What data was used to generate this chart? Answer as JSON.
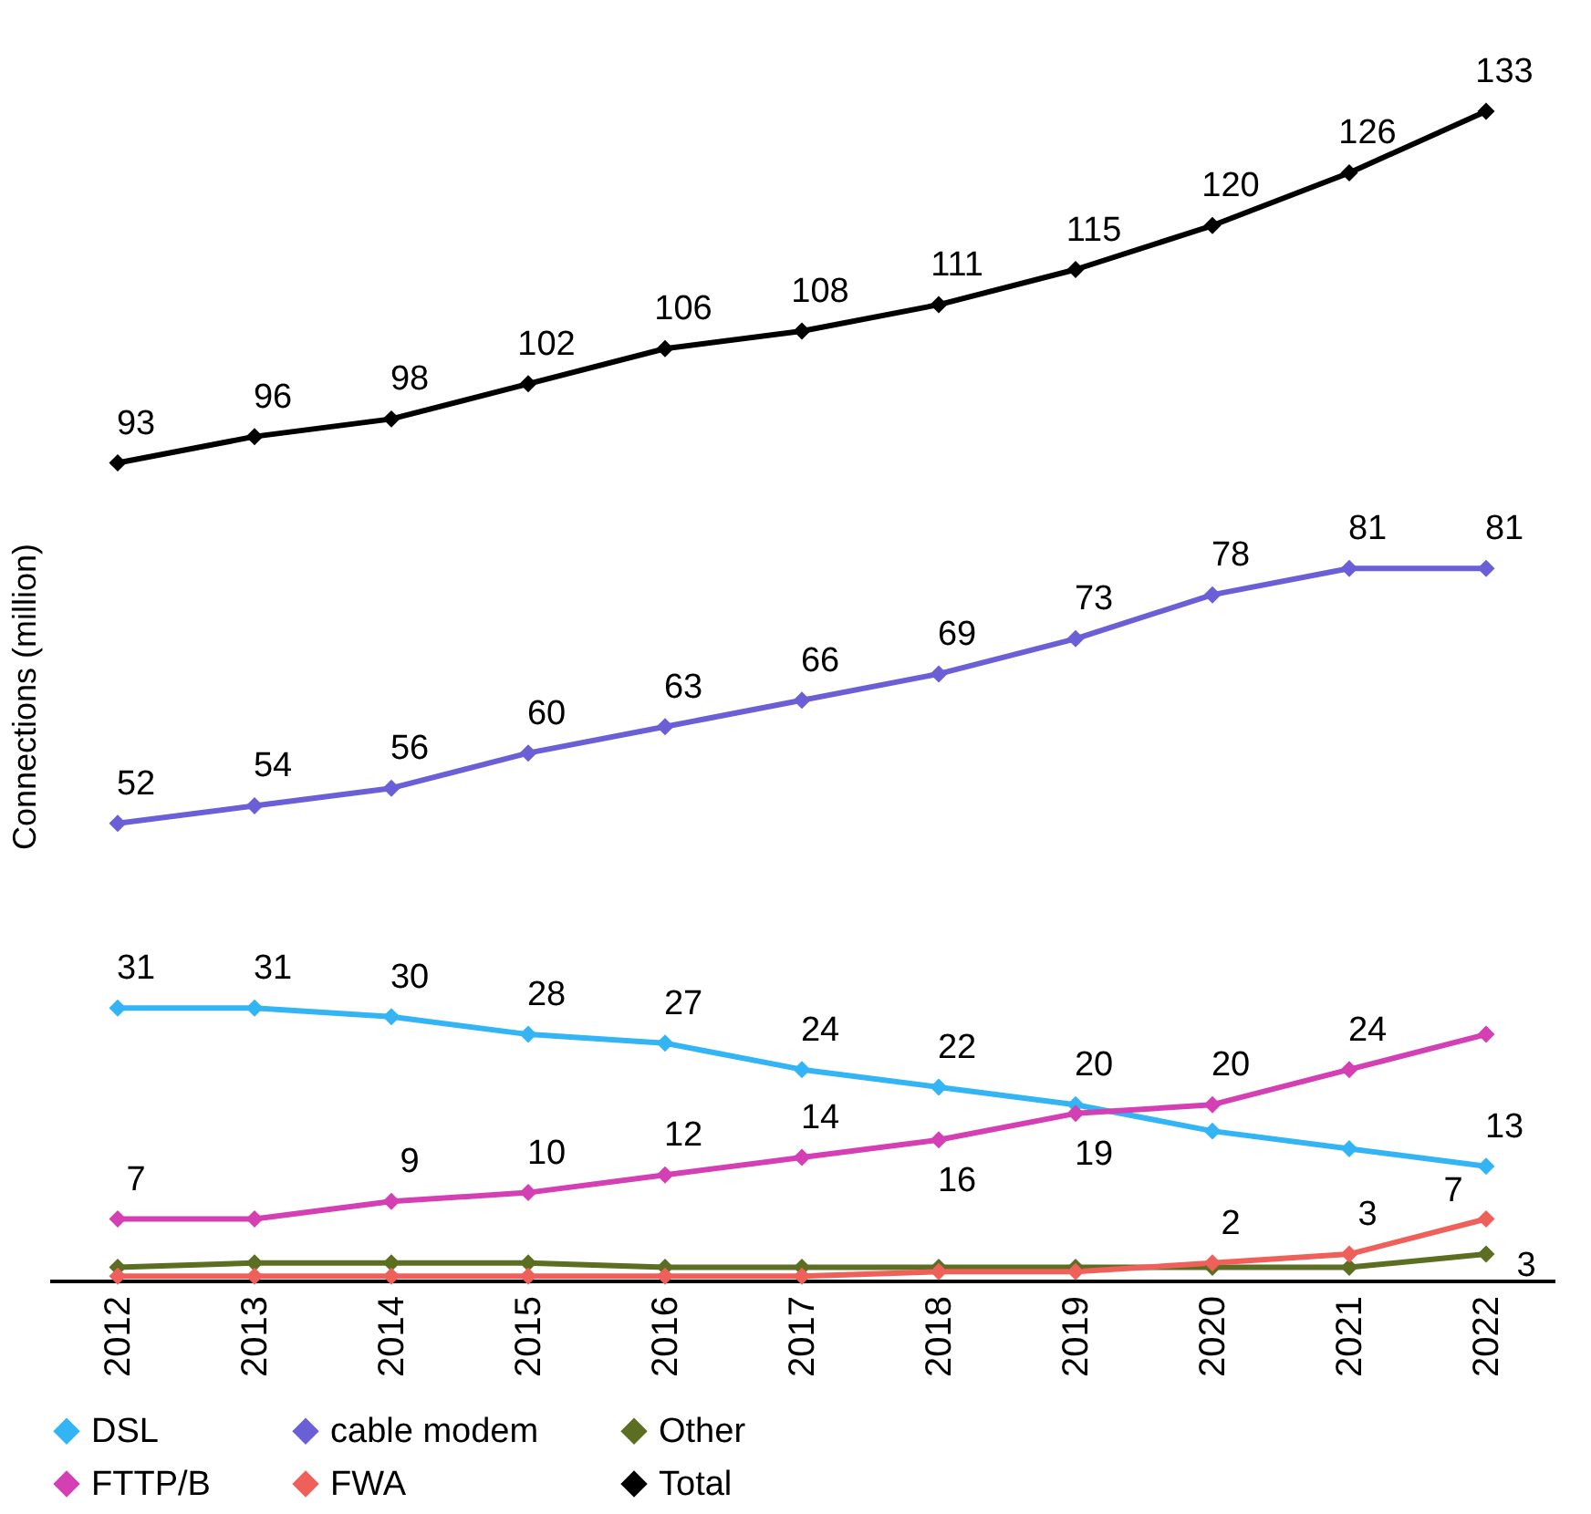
{
  "chart_data": {
    "type": "line",
    "ylabel": "Connections (million)",
    "categories": [
      "2012",
      "2013",
      "2014",
      "2015",
      "2016",
      "2017",
      "2018",
      "2019",
      "2020",
      "2021",
      "2022"
    ],
    "grid": false,
    "legend": "bottom",
    "marker": "diamond",
    "line_style": "solid",
    "series": [
      {
        "name": "DSL",
        "color": "#33b5f5",
        "values": [
          31,
          31,
          30,
          28,
          27,
          24,
          22,
          20,
          17,
          15,
          13
        ],
        "value_labels": [
          "31",
          "31",
          "30",
          "28",
          "27",
          "24",
          "22",
          "20",
          null,
          null,
          "13"
        ]
      },
      {
        "name": "cable modem",
        "color": "#6a5fd6",
        "values": [
          52,
          54,
          56,
          60,
          63,
          66,
          69,
          73,
          78,
          81,
          81
        ],
        "value_labels": [
          "52",
          "54",
          "56",
          "60",
          "63",
          "66",
          "69",
          "73",
          "78",
          "81",
          "81"
        ]
      },
      {
        "name": "Other",
        "color": "#5c6e22",
        "values": [
          1.5,
          2,
          2,
          2,
          1.5,
          1.5,
          1.5,
          1.5,
          1.5,
          1.5,
          3
        ],
        "value_labels": [
          null,
          null,
          null,
          null,
          null,
          null,
          null,
          null,
          null,
          null,
          "3"
        ]
      },
      {
        "name": "FTTP/B",
        "color": "#d43fb4",
        "values": [
          7,
          7,
          9,
          10,
          12,
          14,
          16,
          19,
          20,
          24,
          28
        ],
        "value_labels": [
          "7",
          null,
          "9",
          "10",
          "12",
          "14",
          "16",
          "19",
          "20",
          "24",
          null
        ]
      },
      {
        "name": "FWA",
        "color": "#f0605a",
        "values": [
          0.5,
          0.5,
          0.5,
          0.5,
          0.5,
          0.5,
          1,
          1,
          2,
          3,
          7
        ],
        "value_labels": [
          null,
          null,
          null,
          null,
          null,
          null,
          null,
          null,
          "2",
          "3",
          "7"
        ]
      },
      {
        "name": "Total",
        "color": "#000000",
        "values": [
          93,
          96,
          98,
          102,
          106,
          108,
          111,
          115,
          120,
          126,
          133
        ],
        "value_labels": [
          "93",
          "96",
          "98",
          "102",
          "106",
          "108",
          "111",
          "115",
          "120",
          "126",
          "133"
        ]
      }
    ]
  }
}
